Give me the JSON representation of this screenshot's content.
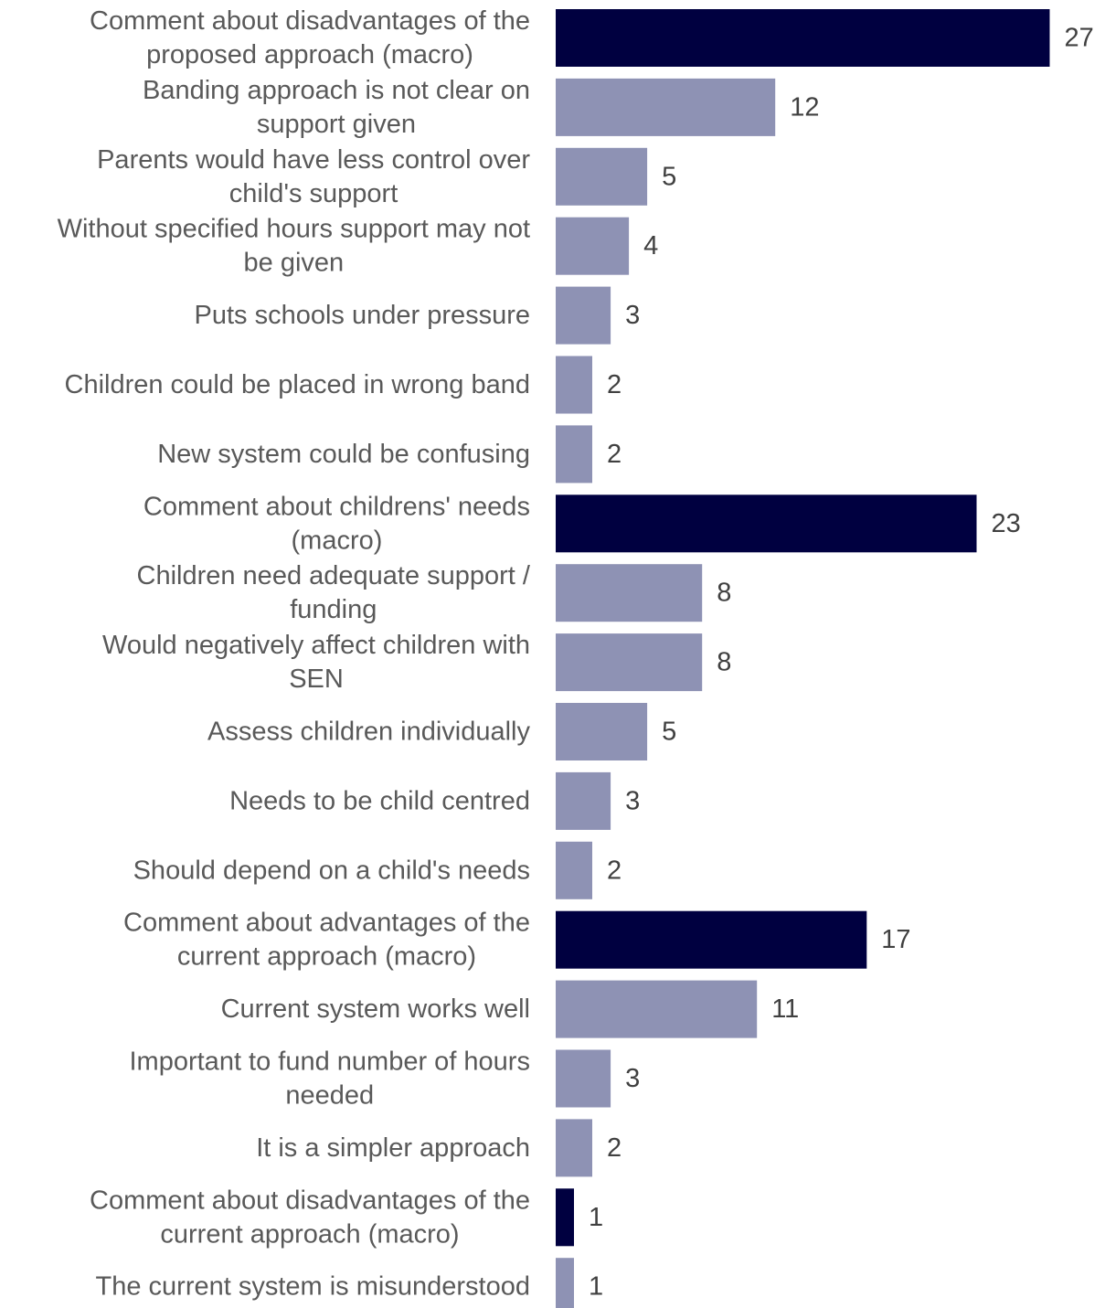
{
  "chart_data": {
    "type": "bar",
    "orientation": "horizontal",
    "categories": [
      "Comment about disadvantages of the proposed approach (macro)",
      "Banding approach is not clear on support given",
      "Parents would have less control over child's support",
      "Without specified hours support may not be given",
      "Puts schools under pressure",
      "Children could be placed in wrong band",
      "New system could be confusing",
      "Comment about childrens' needs (macro)",
      "Children need adequate support / funding",
      "Would negatively affect children with SEN",
      "Assess children individually",
      "Needs to be child centred",
      "Should depend on a child's needs",
      "Comment about advantages of the current approach (macro)",
      "Current system works well",
      "Important to fund number of hours needed",
      "It is a simpler approach",
      "Comment about disadvantages of the current approach (macro)",
      "The current system is misunderstood"
    ],
    "label_lines": [
      [
        "Comment about disadvantages of the",
        "proposed approach (macro)"
      ],
      [
        "Banding approach is not clear on",
        "support given"
      ],
      [
        "Parents would have less control over",
        "child's support"
      ],
      [
        "Without specified hours support may not",
        "be given"
      ],
      [
        "Puts schools under pressure"
      ],
      [
        "Children could be placed in wrong band"
      ],
      [
        "New system could be confusing"
      ],
      [
        "Comment about childrens' needs",
        "(macro)"
      ],
      [
        "Children need adequate support /",
        "funding"
      ],
      [
        "Would negatively affect children with",
        "SEN"
      ],
      [
        "Assess children individually"
      ],
      [
        "Needs to be child centred"
      ],
      [
        "Should depend on a child's needs"
      ],
      [
        "Comment about advantages of the",
        "current approach (macro)"
      ],
      [
        "Current system works well"
      ],
      [
        "Important to fund number of hours",
        "needed"
      ],
      [
        "It is a simpler approach"
      ],
      [
        "Comment about disadvantages of the",
        "current approach (macro)"
      ],
      [
        "The current system is misunderstood"
      ]
    ],
    "values": [
      27,
      12,
      5,
      4,
      3,
      2,
      2,
      23,
      8,
      8,
      5,
      3,
      2,
      17,
      11,
      3,
      2,
      1,
      1
    ],
    "is_macro": [
      true,
      false,
      false,
      false,
      false,
      false,
      false,
      true,
      false,
      false,
      false,
      false,
      false,
      true,
      false,
      false,
      false,
      true,
      false
    ],
    "xlim": [
      0,
      27
    ],
    "title": "",
    "xlabel": "",
    "ylabel": "",
    "grid": false,
    "legend": "none",
    "colors": {
      "macro": "#000040",
      "sub": "#8e92b4",
      "category_text": "#595959",
      "value_text": "#404040",
      "background": "#ffffff"
    }
  }
}
